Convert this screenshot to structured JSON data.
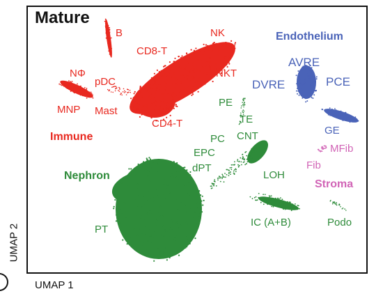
{
  "panel_title": "Mature",
  "colors": {
    "immune": "#e8281f",
    "endothelium": "#4a63b8",
    "nephron": "#2e8b3a",
    "stroma": "#d164b6",
    "frame": "#111111"
  },
  "chart_data": {
    "type": "scatter",
    "title": "Mature",
    "xlabel": "UMAP 1",
    "ylabel": "UMAP 2",
    "grid": false,
    "groups": [
      {
        "name": "Immune",
        "color": "#e8281f",
        "clusters": [
          "B",
          "NK",
          "CD8-T",
          "NKT",
          "NΦ",
          "pDC",
          "MNP",
          "Mast",
          "CD4-T"
        ]
      },
      {
        "name": "Endothelium",
        "color": "#4a63b8",
        "clusters": [
          "AVRE",
          "DVRE",
          "PCE",
          "GE"
        ]
      },
      {
        "name": "Nephron",
        "color": "#2e8b3a",
        "clusters": [
          "PE",
          "TE",
          "PC",
          "CNT",
          "EPC",
          "dPT",
          "LOH",
          "PT",
          "IC (A+B)",
          "Podo"
        ]
      },
      {
        "name": "Stroma",
        "color": "#d164b6",
        "clusters": [
          "MFib",
          "Fib"
        ]
      }
    ]
  }
}
